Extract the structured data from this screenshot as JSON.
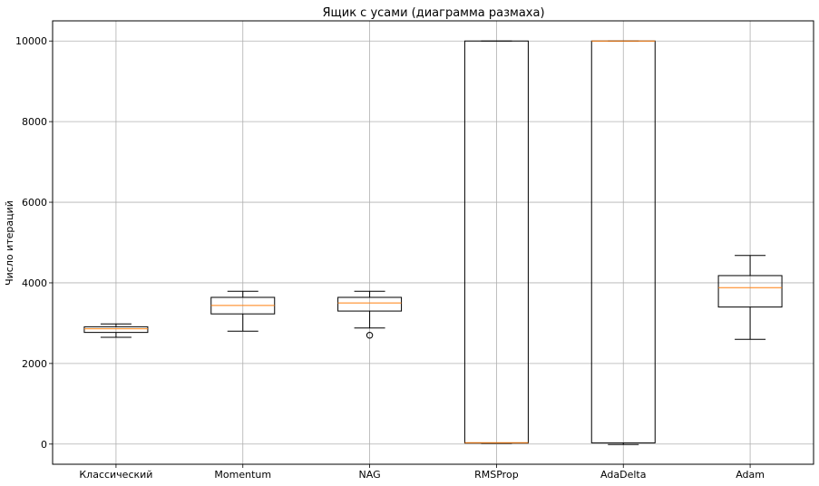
{
  "chart_data": {
    "type": "boxplot",
    "title": "Ящик с усами (диаграмма размаха)",
    "xlabel": "",
    "ylabel": "Число итераций",
    "ylim": [
      -500,
      10500
    ],
    "yticks": [
      0,
      2000,
      4000,
      6000,
      8000,
      10000
    ],
    "grid": true,
    "categories": [
      "Классический",
      "Momentum",
      "NAG",
      "RMSProp",
      "AdaDelta",
      "Adam"
    ],
    "boxes": [
      {
        "name": "Классический",
        "whisker_low": 2650,
        "q1": 2770,
        "median": 2860,
        "q3": 2910,
        "whisker_high": 2980,
        "outliers": []
      },
      {
        "name": "Momentum",
        "whisker_low": 2800,
        "q1": 3230,
        "median": 3440,
        "q3": 3640,
        "whisker_high": 3790,
        "outliers": []
      },
      {
        "name": "NAG",
        "whisker_low": 2880,
        "q1": 3300,
        "median": 3500,
        "q3": 3640,
        "whisker_high": 3790,
        "outliers": [
          2700
        ]
      },
      {
        "name": "RMSProp",
        "whisker_low": 20,
        "q1": 25,
        "median": 35,
        "q3": 10000,
        "whisker_high": 10000,
        "outliers": []
      },
      {
        "name": "AdaDelta",
        "whisker_low": -10,
        "q1": 30,
        "median": 10000,
        "q3": 10000,
        "whisker_high": 10000,
        "outliers": []
      },
      {
        "name": "Adam",
        "whisker_low": 2600,
        "q1": 3400,
        "median": 3880,
        "q3": 4180,
        "whisker_high": 4680,
        "outliers": []
      }
    ],
    "colors": {
      "box": "#000000",
      "median": "#ff7f0e",
      "grid": "#b0b0b0"
    }
  }
}
